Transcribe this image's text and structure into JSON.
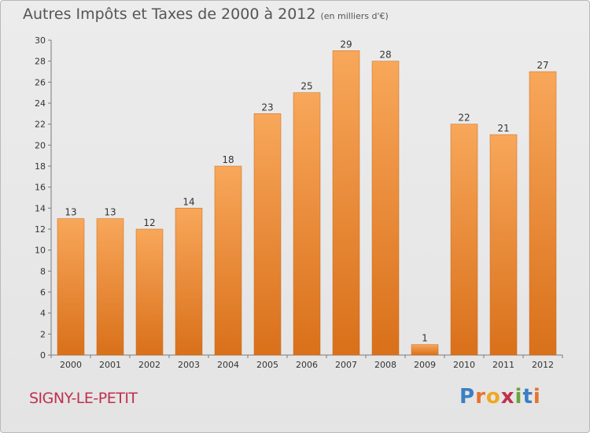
{
  "header": {
    "title": "Autres Impôts et Taxes de 2000 à 2012",
    "unit": "(en milliers d'€)"
  },
  "footer": {
    "commune": "SIGNY-LE-PETIT",
    "logo_letters": [
      "P",
      "r",
      "o",
      "x",
      "i",
      "t",
      "i"
    ],
    "logo_colors": [
      "#3a7fc1",
      "#e8732d",
      "#f0a81e",
      "#c0304d",
      "#6aa53a",
      "#3a7fc1",
      "#e8732d"
    ]
  },
  "colors": {
    "bar_light": "#f8a75a",
    "bar_dark": "#d9701a",
    "axis": "#7a7a7a",
    "text": "#333333"
  },
  "chart_data": {
    "type": "bar",
    "categories": [
      "2000",
      "2001",
      "2002",
      "2003",
      "2004",
      "2005",
      "2006",
      "2007",
      "2008",
      "2009",
      "2010",
      "2011",
      "2012"
    ],
    "values": [
      13,
      13,
      12,
      14,
      18,
      23,
      25,
      29,
      28,
      1,
      22,
      21,
      27
    ],
    "title": "Autres Impôts et Taxes de 2000 à 2012",
    "ylim": [
      0,
      30
    ],
    "yticks": [
      0,
      2,
      4,
      6,
      8,
      10,
      12,
      14,
      16,
      18,
      20,
      22,
      24,
      26,
      28,
      30
    ],
    "grid": false,
    "legend": "none"
  }
}
